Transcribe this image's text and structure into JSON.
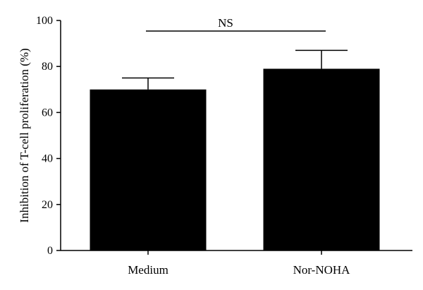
{
  "chart_data": {
    "type": "bar",
    "categories": [
      "Medium",
      "Nor-NOHA"
    ],
    "values": [
      70,
      79
    ],
    "error": [
      5,
      8
    ],
    "title": "",
    "xlabel": "",
    "ylabel": "Inhibition of T-cell proliferation (%)",
    "ylim": [
      0,
      100
    ],
    "yticks": [
      0,
      20,
      40,
      60,
      80,
      100
    ],
    "grid": false,
    "bar_color": "#000000",
    "annotation": {
      "text": "NS",
      "between": [
        "Medium",
        "Nor-NOHA"
      ]
    }
  }
}
